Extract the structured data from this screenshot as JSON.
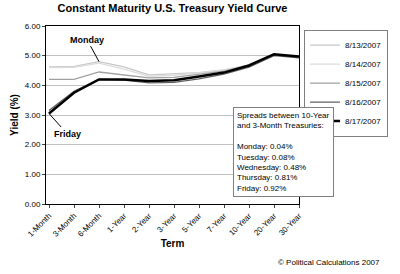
{
  "chart_data": {
    "type": "line",
    "title": "Constant Maturity U.S. Treasury Yield Curve",
    "x_label": "Term",
    "y_label": "Yield (%)",
    "categories": [
      "1-Month",
      "3-Month",
      "6-Month",
      "1-Year",
      "2-Year",
      "3-Year",
      "5-Year",
      "7-Year",
      "10-Year",
      "20-Year",
      "30-Year"
    ],
    "series": [
      {
        "name": "8/13/2007",
        "color": "#c8c8c8",
        "line_style": "solid",
        "values": [
          4.62,
          4.64,
          4.8,
          4.62,
          4.35,
          4.38,
          4.43,
          4.52,
          4.68,
          5.03,
          4.95
        ]
      },
      {
        "name": "8/14/2007",
        "color": "#dcdcdc",
        "line_style": "solid",
        "values": [
          4.6,
          4.61,
          4.75,
          4.55,
          4.3,
          4.34,
          4.42,
          4.52,
          4.69,
          5.04,
          4.96
        ]
      },
      {
        "name": "8/15/2007",
        "color": "#a0a0a0",
        "line_style": "solid",
        "values": [
          4.2,
          4.2,
          4.45,
          4.35,
          4.25,
          4.27,
          4.37,
          4.48,
          4.68,
          5.04,
          4.97
        ]
      },
      {
        "name": "8/16/2007",
        "color": "#606060",
        "line_style": "solid",
        "values": [
          3.15,
          3.8,
          4.2,
          4.18,
          4.08,
          4.1,
          4.22,
          4.38,
          4.61,
          5.0,
          4.93
        ]
      },
      {
        "name": "8/17/2007",
        "color": "#000000",
        "line_style": "thick",
        "values": [
          3.05,
          3.75,
          4.2,
          4.2,
          4.15,
          4.17,
          4.3,
          4.43,
          4.67,
          5.05,
          4.97
        ]
      }
    ],
    "ylim": [
      0,
      6
    ],
    "yticks": [
      {
        "value": 0,
        "label": "0.00"
      },
      {
        "value": 1,
        "label": "1.00"
      },
      {
        "value": 2,
        "label": "2.00"
      },
      {
        "value": 3,
        "label": "3.00"
      },
      {
        "value": 4,
        "label": "4.00"
      },
      {
        "value": 5,
        "label": "5.00"
      },
      {
        "value": 6,
        "label": "6.00"
      }
    ],
    "grid": true,
    "legend": "right",
    "annotations": [
      {
        "text": "Monday",
        "x": "6-Month",
        "y": 4.8
      },
      {
        "text": "Friday",
        "x": "1-Month",
        "y": 3.05
      }
    ],
    "note": {
      "heading": [
        "Spreads between 10-Year",
        "and 3-Month Treasuries:"
      ],
      "lines": [
        "Monday: 0.04%",
        "Tuesday: 0.08%",
        "Wednesday: 0.48%",
        "Thursday: 0.81%",
        "Friday: 0.92%"
      ]
    },
    "source": "© Political Calculations 2007"
  }
}
